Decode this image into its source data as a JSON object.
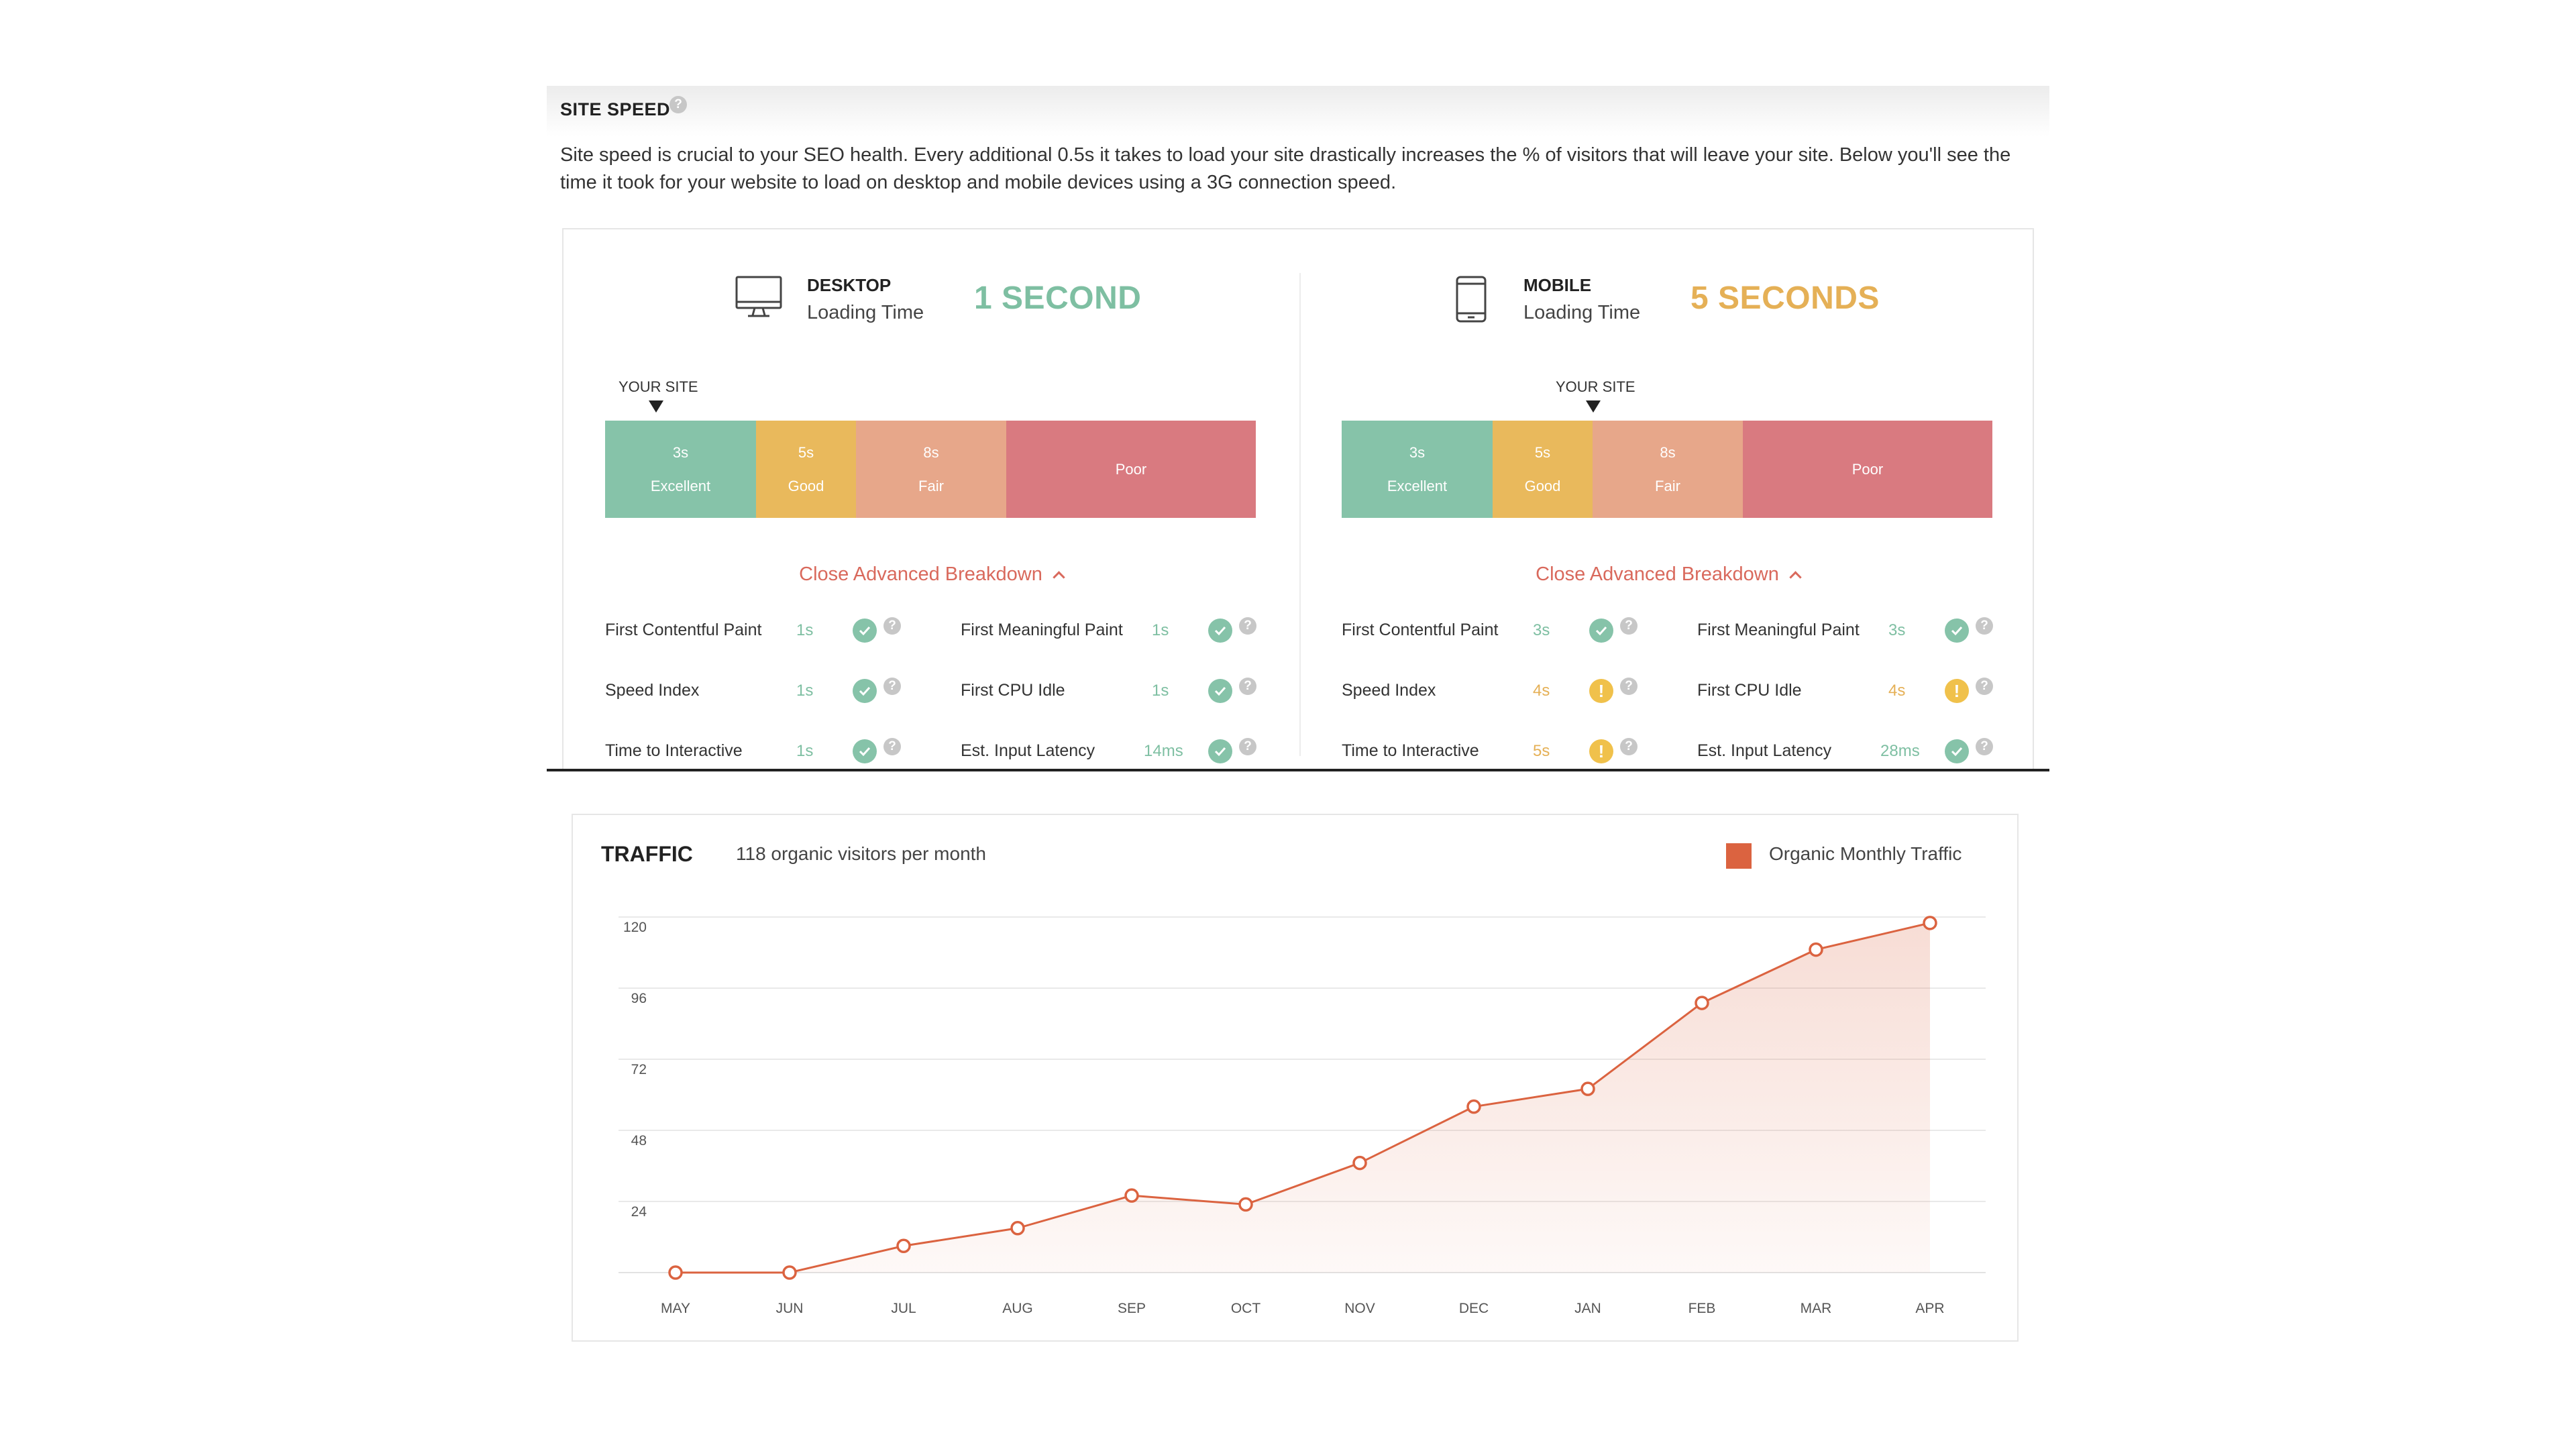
{
  "site_speed": {
    "title": "SITE SPEED",
    "help_icon": "question-icon",
    "description": "Site speed is crucial to your SEO health. Every additional 0.5s it takes to load your site drastically increases the % of visitors that will leave your site. Below you'll see the time it took for your website to load on desktop and mobile devices using a 3G connection speed.",
    "desktop": {
      "icon": "desktop-monitor-icon",
      "name": "DESKTOP",
      "subtitle": "Loading Time",
      "time": "1 SECOND",
      "time_color": "#7ebfa2",
      "your_site_label": "YOUR SITE",
      "scale": [
        {
          "value": "3s",
          "label": "Excellent"
        },
        {
          "value": "5s",
          "label": "Good"
        },
        {
          "value": "8s",
          "label": "Fair"
        },
        {
          "value": "",
          "label": "Poor"
        }
      ],
      "toggle_label": "Close Advanced Breakdown",
      "metrics": [
        {
          "label": "First Contentful Paint",
          "value": "1s",
          "status": "ok"
        },
        {
          "label": "First Meaningful Paint",
          "value": "1s",
          "status": "ok"
        },
        {
          "label": "Speed Index",
          "value": "1s",
          "status": "ok"
        },
        {
          "label": "First CPU Idle",
          "value": "1s",
          "status": "ok"
        },
        {
          "label": "Time to Interactive",
          "value": "1s",
          "status": "ok"
        },
        {
          "label": "Est. Input Latency",
          "value": "14ms",
          "status": "ok"
        }
      ]
    },
    "mobile": {
      "icon": "mobile-phone-icon",
      "name": "MOBILE",
      "subtitle": "Loading Time",
      "time": "5 SECONDS",
      "time_color": "#e5b056",
      "your_site_label": "YOUR SITE",
      "scale": [
        {
          "value": "3s",
          "label": "Excellent"
        },
        {
          "value": "5s",
          "label": "Good"
        },
        {
          "value": "8s",
          "label": "Fair"
        },
        {
          "value": "",
          "label": "Poor"
        }
      ],
      "toggle_label": "Close Advanced Breakdown",
      "metrics": [
        {
          "label": "First Contentful Paint",
          "value": "3s",
          "status": "ok"
        },
        {
          "label": "First Meaningful Paint",
          "value": "3s",
          "status": "ok"
        },
        {
          "label": "Speed Index",
          "value": "4s",
          "status": "warn"
        },
        {
          "label": "First CPU Idle",
          "value": "4s",
          "status": "warn"
        },
        {
          "label": "Time to Interactive",
          "value": "5s",
          "status": "warn"
        },
        {
          "label": "Est. Input Latency",
          "value": "28ms",
          "status": "ok"
        }
      ]
    }
  },
  "traffic": {
    "title": "TRAFFIC",
    "subtitle": "118 organic visitors per month",
    "legend_label": "Organic Monthly Traffic",
    "legend_color": "#db6340"
  },
  "chart_data": {
    "type": "area",
    "title": "",
    "xlabel": "",
    "ylabel": "",
    "categories": [
      "MAY",
      "JUN",
      "JUL",
      "AUG",
      "SEP",
      "OCT",
      "NOV",
      "DEC",
      "JAN",
      "FEB",
      "MAR",
      "APR"
    ],
    "series": [
      {
        "name": "Organic Monthly Traffic",
        "color": "#db6340",
        "values": [
          0,
          0,
          9,
          15,
          26,
          23,
          37,
          56,
          62,
          91,
          109,
          118
        ]
      }
    ],
    "yticks": [
      24,
      48,
      72,
      96,
      120
    ],
    "ylim": [
      0,
      120
    ],
    "grid": true,
    "legend": "top-right"
  }
}
